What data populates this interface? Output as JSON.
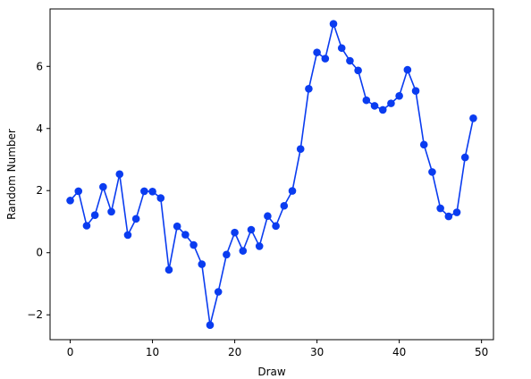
{
  "chart_data": {
    "type": "line",
    "title": "",
    "xlabel": "Draw",
    "ylabel": "Random Number",
    "xlim": [
      -2.45,
      51.45
    ],
    "ylim": [
      -2.8,
      7.85
    ],
    "x_ticks": [
      0,
      10,
      20,
      30,
      40,
      50
    ],
    "y_ticks": [
      -2,
      0,
      2,
      4,
      6
    ],
    "x_tick_labels": [
      "0",
      "10",
      "20",
      "30",
      "40",
      "50"
    ],
    "y_tick_labels": [
      "−2",
      "0",
      "2",
      "4",
      "6"
    ],
    "grid": false,
    "legend": "none",
    "series": [
      {
        "color": "#0a3cf0",
        "marker": "circle",
        "x": [
          0,
          1,
          2,
          3,
          4,
          5,
          6,
          7,
          8,
          9,
          10,
          11,
          12,
          13,
          14,
          15,
          16,
          17,
          18,
          19,
          20,
          21,
          22,
          23,
          24,
          25,
          26,
          27,
          28,
          29,
          30,
          31,
          32,
          33,
          34,
          35,
          36,
          37,
          38,
          39,
          40,
          41,
          42,
          43,
          44,
          45,
          46,
          47,
          48,
          49
        ],
        "values": [
          1.68,
          1.98,
          0.87,
          1.21,
          2.12,
          1.32,
          2.53,
          0.57,
          1.09,
          1.98,
          1.97,
          1.76,
          -0.55,
          0.85,
          0.58,
          0.25,
          -0.37,
          -2.33,
          -1.26,
          -0.06,
          0.65,
          0.06,
          0.74,
          0.21,
          1.18,
          0.86,
          1.51,
          1.99,
          3.34,
          5.28,
          6.45,
          6.25,
          7.37,
          6.59,
          6.18,
          5.87,
          4.91,
          4.73,
          4.6,
          4.81,
          5.05,
          5.89,
          5.21,
          3.48,
          2.6,
          1.43,
          1.17,
          1.3,
          3.07,
          4.33
        ]
      }
    ]
  }
}
